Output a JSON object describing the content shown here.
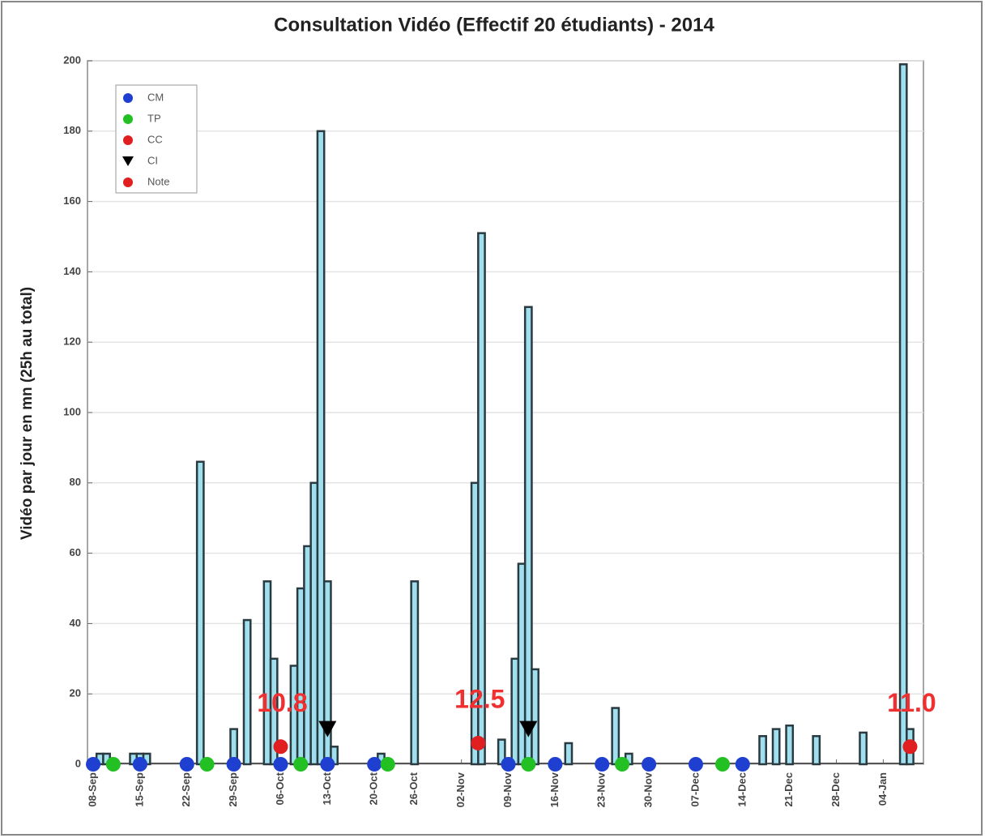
{
  "chart_data": {
    "type": "bar",
    "title": "Consultation Vidéo (Effectif 20 étudiants) - 2014",
    "y_label": "Vidéo par jour en mn (25h au total)",
    "xlim": [
      -0.85,
      124
    ],
    "xticks": [
      {
        "value": 0,
        "label": "08-Sep"
      },
      {
        "value": 7,
        "label": "15-Sep"
      },
      {
        "value": 14,
        "label": "22-Sep"
      },
      {
        "value": 21,
        "label": "29-Sep"
      },
      {
        "value": 28,
        "label": "06-Oct"
      },
      {
        "value": 35,
        "label": "13-Oct"
      },
      {
        "value": 42,
        "label": "20-Oct"
      },
      {
        "value": 48,
        "label": "26-Oct"
      },
      {
        "value": 55,
        "label": "02-Nov"
      },
      {
        "value": 62,
        "label": "09-Nov"
      },
      {
        "value": 69,
        "label": "16-Nov"
      },
      {
        "value": 76,
        "label": "23-Nov"
      },
      {
        "value": 83,
        "label": "30-Nov"
      },
      {
        "value": 90,
        "label": "07-Dec"
      },
      {
        "value": 97,
        "label": "14-Dec"
      },
      {
        "value": 104,
        "label": "21-Dec"
      },
      {
        "value": 111,
        "label": "28-Dec"
      },
      {
        "value": 118,
        "label": "04-Jan"
      }
    ],
    "ylim": [
      0,
      200
    ],
    "yticks": [
      0,
      20,
      40,
      60,
      80,
      100,
      120,
      140,
      160,
      180,
      200
    ],
    "grid": true,
    "color": "#9fdfee",
    "x": [
      1,
      2,
      6,
      7,
      8,
      16,
      21,
      23,
      26,
      27,
      30,
      31,
      32,
      33,
      34,
      35,
      36,
      43,
      48,
      57,
      58,
      61,
      63,
      64,
      65,
      66,
      71,
      78,
      80,
      100,
      102,
      104,
      108,
      115,
      121,
      122
    ],
    "values": [
      3,
      3,
      3,
      3,
      3,
      86,
      10,
      41,
      52,
      30,
      28,
      50,
      62,
      80,
      180,
      52,
      5,
      3,
      52,
      80,
      151,
      7,
      30,
      57,
      130,
      27,
      6,
      16,
      3,
      8,
      10,
      11,
      8,
      9,
      199,
      10
    ],
    "legend": "upper left",
    "markers": [
      {
        "name": "CM",
        "color": "#1f3fd0",
        "shape": "circle",
        "x": [
          0,
          7,
          14,
          21,
          28,
          35,
          42,
          62,
          69,
          76,
          83,
          90,
          97
        ],
        "values": [
          0,
          0,
          0,
          0,
          0,
          0,
          0,
          0,
          0,
          0,
          0,
          0,
          0
        ]
      },
      {
        "name": "TP",
        "color": "#22c022",
        "shape": "circle",
        "x": [
          3,
          17,
          31,
          44,
          65,
          79,
          94
        ],
        "values": [
          0,
          0,
          0,
          0,
          0,
          0,
          0
        ]
      },
      {
        "name": "CC",
        "color": "#e02020",
        "shape": "circle",
        "x": [],
        "values": []
      },
      {
        "name": "CI",
        "color": "#000000",
        "shape": "triangle",
        "x": [
          35,
          65
        ],
        "values": [
          10,
          10
        ]
      },
      {
        "name": "Note",
        "color": "#e02020",
        "shape": "circle",
        "x": [
          28,
          57.5,
          122
        ],
        "values": [
          5,
          6,
          5
        ],
        "point_labels": [
          "10.8",
          "12.5",
          "11.0"
        ]
      }
    ]
  }
}
